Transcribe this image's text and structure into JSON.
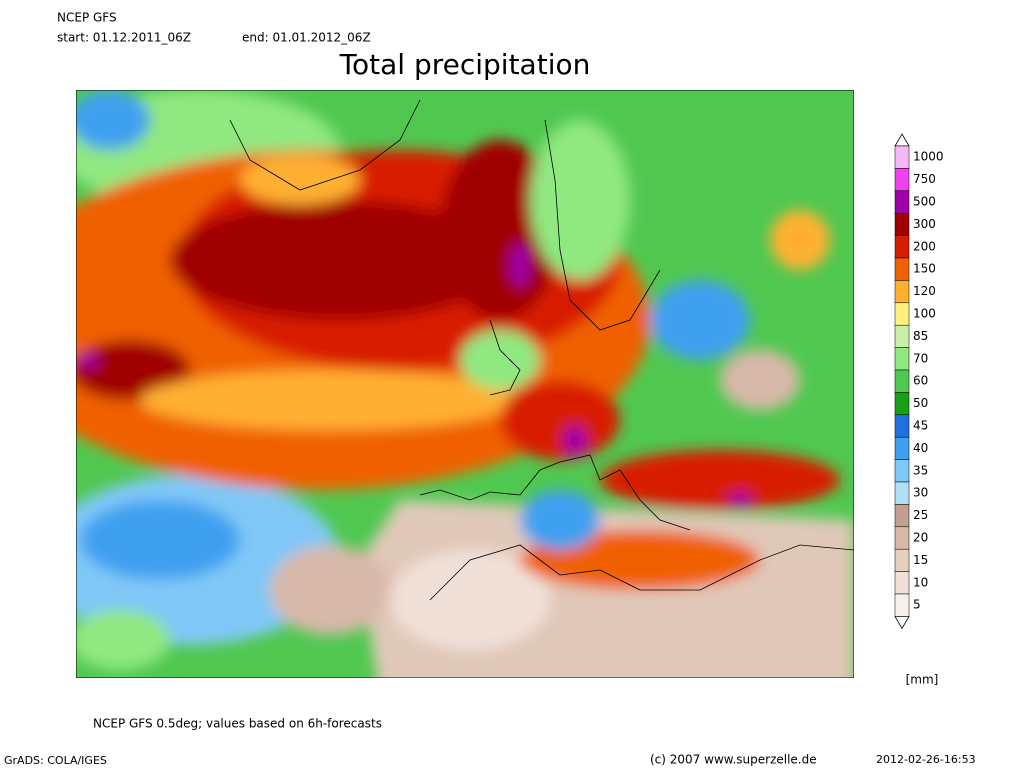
{
  "header": {
    "model": "NCEP GFS",
    "start": "start: 01.12.2011_06Z",
    "end": "end: 01.01.2012_06Z"
  },
  "title": "Total precipitation",
  "legend": {
    "unit": "[mm]",
    "levels": [
      {
        "value": 1000,
        "color": "#f4b8f4"
      },
      {
        "value": 750,
        "color": "#f040f0"
      },
      {
        "value": 500,
        "color": "#a000a8"
      },
      {
        "value": 300,
        "color": "#a00000"
      },
      {
        "value": 200,
        "color": "#d81e00"
      },
      {
        "value": 150,
        "color": "#f06000"
      },
      {
        "value": 120,
        "color": "#ffb030"
      },
      {
        "value": 100,
        "color": "#fff080"
      },
      {
        "value": 85,
        "color": "#c8f0a8"
      },
      {
        "value": 70,
        "color": "#90e880"
      },
      {
        "value": 60,
        "color": "#50c850"
      },
      {
        "value": 50,
        "color": "#18a018"
      },
      {
        "value": 45,
        "color": "#2070e0"
      },
      {
        "value": 40,
        "color": "#40a0f0"
      },
      {
        "value": 35,
        "color": "#80c8f8"
      },
      {
        "value": 30,
        "color": "#b0e0f8"
      },
      {
        "value": 25,
        "color": "#c0a090"
      },
      {
        "value": 20,
        "color": "#d8b8a8"
      },
      {
        "value": 15,
        "color": "#e8d0c0"
      },
      {
        "value": 10,
        "color": "#f0e0d8"
      },
      {
        "value": 5,
        "color": "#f8f0ec"
      }
    ]
  },
  "footer": {
    "note": "NCEP GFS 0.5deg; values based on 6h-forecasts",
    "software": "GrADS: COLA/IGES",
    "copyright": "(c) 2007 www.superzelle.de",
    "timestamp": "2012-02-26-16:53"
  }
}
